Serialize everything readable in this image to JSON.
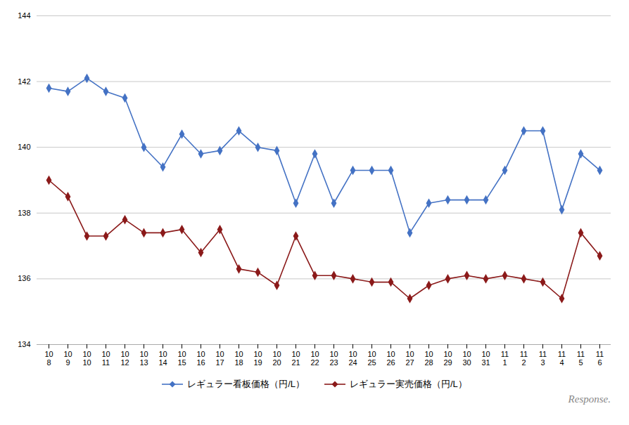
{
  "chart_data": {
    "type": "line",
    "categories": [
      "10\n8",
      "10\n9",
      "10\n10",
      "10\n11",
      "10\n12",
      "10\n13",
      "10\n14",
      "10\n15",
      "10\n16",
      "10\n17",
      "10\n18",
      "10\n19",
      "10\n20",
      "10\n21",
      "10\n22",
      "10\n23",
      "10\n24",
      "10\n25",
      "10\n26",
      "10\n27",
      "10\n28",
      "10\n29",
      "10\n30",
      "10\n31",
      "11\n1",
      "11\n2",
      "11\n3",
      "11\n4",
      "11\n5",
      "11\n6"
    ],
    "series": [
      {
        "name": "レギュラー看板価格（円/L）",
        "color": "#4472C4",
        "marker": "diamond",
        "values": [
          141.8,
          141.7,
          142.1,
          141.7,
          141.5,
          140.0,
          139.4,
          140.4,
          139.8,
          139.9,
          140.5,
          140.0,
          139.9,
          138.3,
          139.8,
          138.3,
          139.3,
          139.3,
          139.3,
          137.4,
          138.3,
          138.4,
          138.4,
          138.4,
          139.3,
          140.5,
          140.5,
          138.1,
          139.8,
          139.3
        ]
      },
      {
        "name": "レギュラー実売価格（円/L）",
        "color": "#8B1A1A",
        "marker": "diamond",
        "values": [
          139.0,
          138.5,
          137.3,
          137.3,
          137.8,
          137.4,
          137.4,
          137.5,
          136.8,
          137.5,
          136.3,
          136.2,
          135.8,
          137.3,
          136.1,
          136.1,
          136.0,
          135.9,
          135.9,
          135.4,
          135.8,
          136.0,
          136.1,
          136.0,
          136.1,
          136.0,
          135.9,
          135.4,
          137.4,
          136.7
        ]
      }
    ],
    "ylim": [
      134,
      144
    ],
    "yticks": [
      134,
      136,
      138,
      140,
      142,
      144
    ],
    "grid": true,
    "legend": "bottom",
    "annotations": [
      "Response."
    ]
  }
}
